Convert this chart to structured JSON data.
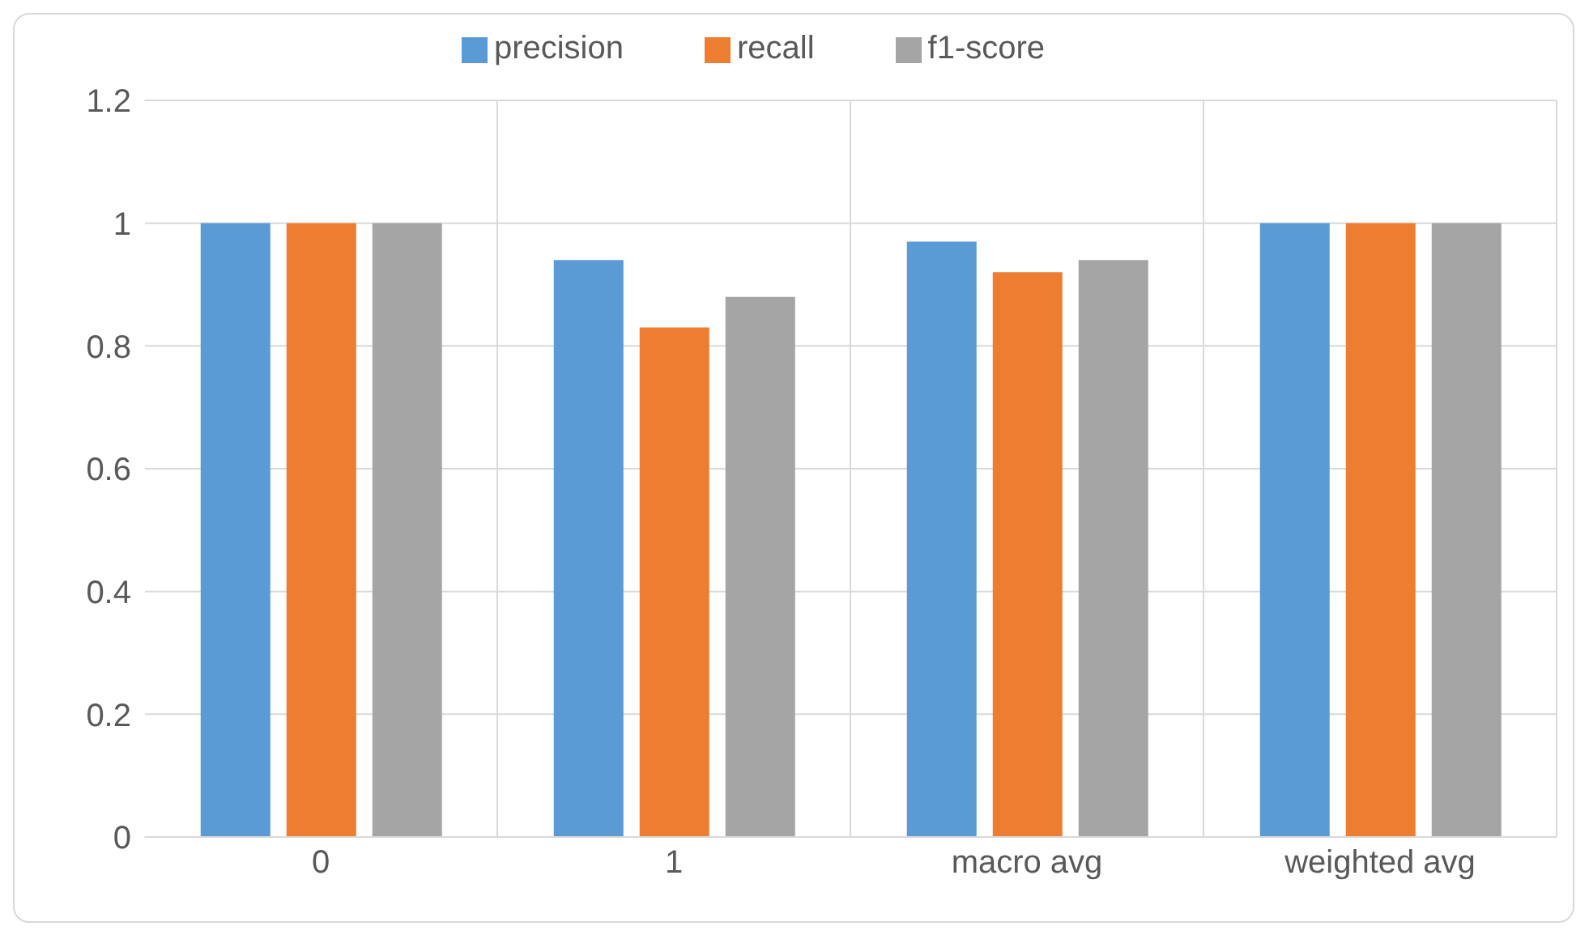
{
  "chart_data": {
    "type": "bar",
    "categories": [
      "0",
      "1",
      "macro avg",
      "weighted avg"
    ],
    "series": [
      {
        "name": "precision",
        "color": "#5b9bd5",
        "values": [
          1,
          0.94,
          0.97,
          1
        ]
      },
      {
        "name": "recall",
        "color": "#ed7d31",
        "values": [
          1,
          0.83,
          0.92,
          1
        ]
      },
      {
        "name": "f1-score",
        "color": "#a5a5a5",
        "values": [
          1,
          0.88,
          0.94,
          1
        ]
      }
    ],
    "ylim": [
      0,
      1.2
    ],
    "yticks": [
      0,
      0.2,
      0.4,
      0.6,
      0.8,
      1,
      1.2
    ],
    "grid": true,
    "legend": "top"
  }
}
